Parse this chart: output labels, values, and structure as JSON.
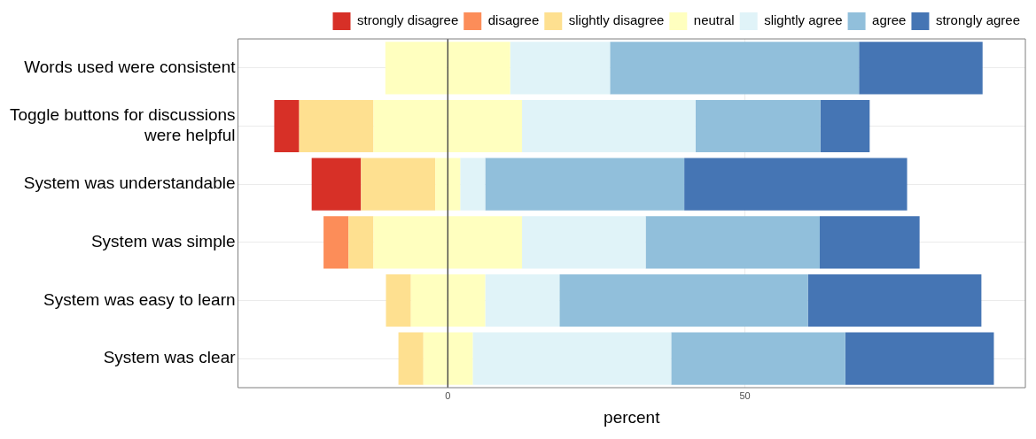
{
  "chart_data": {
    "type": "bar",
    "orientation": "horizontal",
    "stacked": true,
    "xlabel": "percent",
    "categories": [
      "Words used were consistent",
      "Toggle buttons for discussions were helpful",
      "System was understandable",
      "System was simple",
      "System was easy to learn",
      "System was clear"
    ],
    "series": [
      {
        "color": "#ffffbf",
        "values": [
          -10.5,
          -12.5,
          -2.1,
          -12.5,
          -6.2,
          -4.1
        ]
      },
      {
        "name": "slightly disagree",
        "color": "#fee090",
        "values": [
          null,
          -12.5,
          -12.5,
          -4.2,
          -4.2,
          -4.2
        ]
      },
      {
        "name": "disagree",
        "color": "#fc8d59",
        "values": [
          null,
          null,
          null,
          -4.2,
          null,
          null
        ]
      },
      {
        "name": "strongly disagree",
        "color": "#d73027",
        "values": [
          null,
          -4.2,
          -8.3,
          null,
          null,
          null
        ]
      },
      {
        "name": "neutral",
        "color": "#ffffbf",
        "values": [
          10.5,
          12.5,
          2.1,
          12.5,
          6.3,
          4.2
        ]
      },
      {
        "name": "slightly agree",
        "color": "#e0f3f8",
        "values": [
          16.8,
          29.2,
          4.2,
          20.8,
          12.5,
          33.4
        ]
      },
      {
        "name": "agree",
        "color": "#91bfdb",
        "values": [
          41.9,
          21,
          33.5,
          29.3,
          41.8,
          29.3
        ]
      },
      {
        "name": "strongly agree",
        "color": "#4575b4",
        "values": [
          20.8,
          8.3,
          37.5,
          16.8,
          29.2,
          25
        ]
      }
    ],
    "xlim": [
      -35.3,
      97.2
    ],
    "xticks": [
      0,
      50
    ],
    "grid": true,
    "legend": "top",
    "ref_lines": [
      {
        "axis": "x",
        "value": 0,
        "color": "#000000"
      }
    ]
  }
}
